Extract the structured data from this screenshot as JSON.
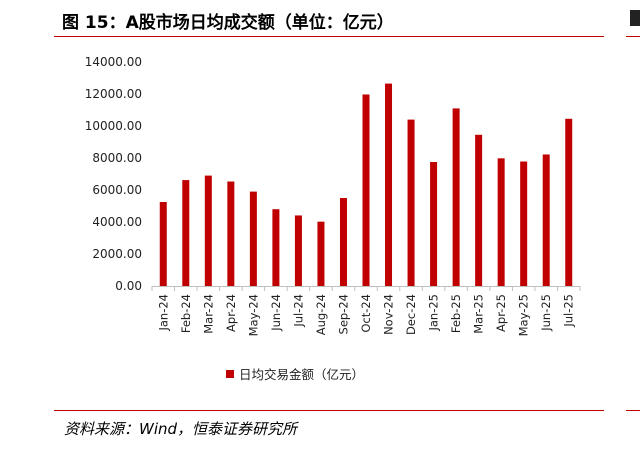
{
  "title": "图 15：A股市场日均成交额（单位：亿元）",
  "source": "资料来源：Wind，恒泰证券研究所",
  "colors": {
    "accent": "#c00000",
    "bar": "#c00000"
  },
  "chart_data": {
    "type": "bar",
    "categories": [
      "Jan-24",
      "Feb-24",
      "Mar-24",
      "Apr-24",
      "May-24",
      "Jun-24",
      "Jul-24",
      "Aug-24",
      "Sep-24",
      "Oct-24",
      "Nov-24",
      "Dec-24",
      "Jan-25",
      "Feb-25",
      "Mar-25",
      "Apr-25",
      "May-25",
      "Jun-25",
      "Jul-25"
    ],
    "series": [
      {
        "name": "日均交易金额（亿元）",
        "values": [
          5250,
          6620,
          6900,
          6530,
          5900,
          4800,
          4410,
          4020,
          5500,
          11970,
          12650,
          10400,
          7750,
          11100,
          9450,
          7980,
          7780,
          8220,
          10450
        ]
      }
    ],
    "yticks": [
      "0.00",
      "2000.00",
      "4000.00",
      "6000.00",
      "8000.00",
      "10000.00",
      "12000.00",
      "14000.00"
    ],
    "ylim": [
      0,
      14000
    ],
    "legend_position": "bottom",
    "grid": false
  }
}
